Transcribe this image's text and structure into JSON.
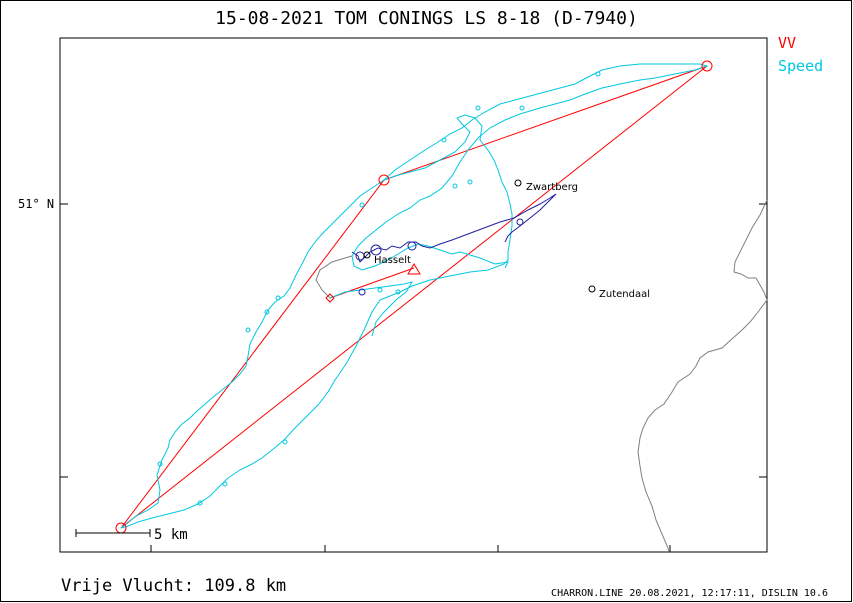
{
  "title": "15-08-2021   TOM CONINGS   LS 8-18 (D-7940)",
  "legend": {
    "vv_label": "VV",
    "vv_color": "#ff0000",
    "speed_label": "Speed",
    "speed_color": "#00c8e0"
  },
  "axis": {
    "lat_label": "51° N"
  },
  "places": [
    {
      "name": "Zwartberg"
    },
    {
      "name": "Hasselt"
    },
    {
      "name": "Zutendaal"
    }
  ],
  "scale_label": "5 km",
  "distance_label": "Vrije Vlucht:  109.8 km",
  "footer": "CHARRON.LINE 20.08.2021, 12:17:11, DISLIN 10.6",
  "colors": {
    "track_main": "#00c8e0",
    "track_thermal": "#2020a0",
    "triangle": "#ff0000",
    "border": "#808080"
  }
}
